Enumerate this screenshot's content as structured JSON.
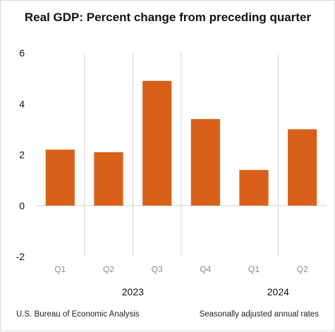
{
  "chart_data": {
    "type": "bar",
    "title": "Real GDP:  Percent change from preceding quarter",
    "categories": [
      "Q1",
      "Q2",
      "Q3",
      "Q4",
      "Q1",
      "Q2"
    ],
    "groups": [
      {
        "label": "2023",
        "count": 4
      },
      {
        "label": "2024",
        "count": 2
      }
    ],
    "series": [
      {
        "values": [
          2.2,
          2.1,
          4.9,
          3.4,
          1.4,
          3.0
        ]
      }
    ],
    "ylim": [
      -2,
      6
    ],
    "yticks": [
      -2,
      0,
      2,
      4,
      6
    ],
    "grid": "vertical category dividers",
    "bar_color": "#d9601a"
  },
  "footer": {
    "source": "U.S. Bureau of Economic Analysis",
    "note": "Seasonally adjusted annual rates"
  }
}
